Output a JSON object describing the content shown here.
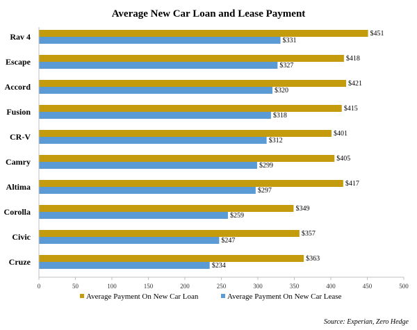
{
  "chart_data": {
    "type": "bar",
    "orientation": "horizontal",
    "title": "Average New Car Loan and Lease Payment",
    "categories": [
      "Rav 4",
      "Escape",
      "Accord",
      "Fusion",
      "CR-V",
      "Camry",
      "Altima",
      "Corolla",
      "Civic",
      "Cruze"
    ],
    "series": [
      {
        "name": "Average Payment On New Car Loan",
        "color": "#C59B0E",
        "values": [
          451,
          418,
          421,
          415,
          401,
          405,
          417,
          349,
          357,
          363
        ],
        "labels": [
          "$451",
          "$418",
          "$421",
          "$415",
          "$401",
          "$405",
          "$417",
          "$349",
          "$357",
          "$363"
        ]
      },
      {
        "name": "Average Payment On New Car Lease",
        "color": "#5B9BD5",
        "values": [
          331,
          327,
          320,
          318,
          312,
          299,
          297,
          259,
          247,
          234
        ],
        "labels": [
          "$331",
          "$327",
          "$320",
          "$318",
          "$312",
          "$299",
          "$297",
          "$259",
          "$247",
          "$234"
        ]
      }
    ],
    "xlim": [
      0,
      500
    ],
    "xticks": [
      "0",
      "50",
      "100",
      "150",
      "200",
      "250",
      "300",
      "350",
      "400",
      "450",
      "500"
    ],
    "grid": false,
    "legend_position": "bottom",
    "source": "Source: Experian, Zero Hedge"
  }
}
